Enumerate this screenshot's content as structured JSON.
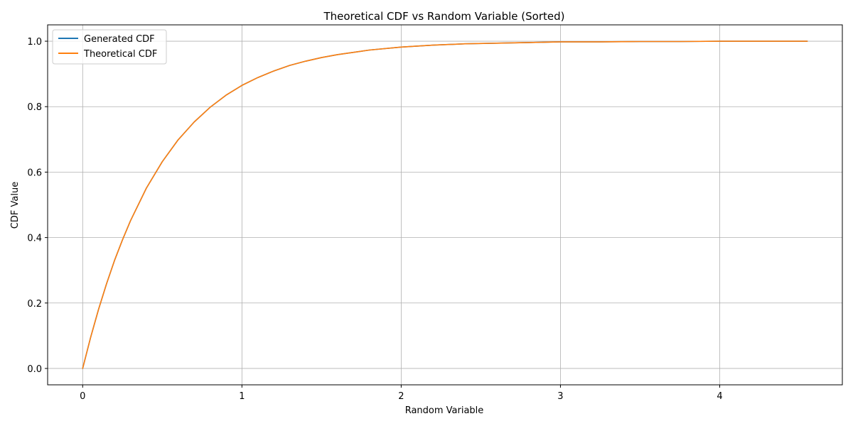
{
  "chart_data": {
    "type": "line",
    "title": "Theoretical CDF vs Random Variable (Sorted)",
    "xlabel": "Random Variable",
    "ylabel": "CDF Value",
    "xlim": [
      -0.22,
      4.77
    ],
    "ylim": [
      -0.05,
      1.05
    ],
    "xticks": [
      0,
      1,
      2,
      3,
      4
    ],
    "yticks": [
      0.0,
      0.2,
      0.4,
      0.6,
      0.8,
      1.0
    ],
    "xtick_labels": [
      "0",
      "1",
      "2",
      "3",
      "4"
    ],
    "ytick_labels": [
      "0.0",
      "0.2",
      "0.4",
      "0.6",
      "0.8",
      "1.0"
    ],
    "grid": true,
    "legend_position": "top-left",
    "series": [
      {
        "name": "Generated CDF",
        "color": "#1f77b4",
        "x": [
          0,
          0.05,
          0.1,
          0.15,
          0.2,
          0.25,
          0.3,
          0.4,
          0.5,
          0.6,
          0.7,
          0.8,
          0.9,
          1.0,
          1.1,
          1.2,
          1.3,
          1.4,
          1.5,
          1.6,
          1.8,
          2.0,
          2.2,
          2.4,
          2.6,
          2.8,
          3.0,
          3.25,
          3.5,
          3.75,
          4.0,
          4.25,
          4.55
        ],
        "y": [
          0.0,
          0.095,
          0.181,
          0.259,
          0.33,
          0.393,
          0.451,
          0.551,
          0.632,
          0.699,
          0.753,
          0.798,
          0.835,
          0.865,
          0.889,
          0.909,
          0.926,
          0.939,
          0.95,
          0.959,
          0.973,
          0.982,
          0.988,
          0.992,
          0.994,
          0.996,
          0.998,
          0.998,
          0.999,
          0.999,
          1.0,
          1.0,
          1.0
        ]
      },
      {
        "name": "Theoretical CDF",
        "color": "#ff7f0e",
        "x": [
          0,
          0.05,
          0.1,
          0.15,
          0.2,
          0.25,
          0.3,
          0.4,
          0.5,
          0.6,
          0.7,
          0.8,
          0.9,
          1.0,
          1.1,
          1.2,
          1.3,
          1.4,
          1.5,
          1.6,
          1.8,
          2.0,
          2.2,
          2.4,
          2.6,
          2.8,
          3.0,
          3.25,
          3.5,
          3.75,
          4.0,
          4.25,
          4.55
        ],
        "y": [
          0.0,
          0.095,
          0.181,
          0.259,
          0.33,
          0.393,
          0.451,
          0.551,
          0.632,
          0.699,
          0.753,
          0.798,
          0.835,
          0.865,
          0.889,
          0.909,
          0.926,
          0.939,
          0.95,
          0.959,
          0.973,
          0.982,
          0.988,
          0.992,
          0.994,
          0.996,
          0.998,
          0.998,
          0.999,
          0.999,
          1.0,
          1.0,
          1.0
        ]
      }
    ]
  }
}
